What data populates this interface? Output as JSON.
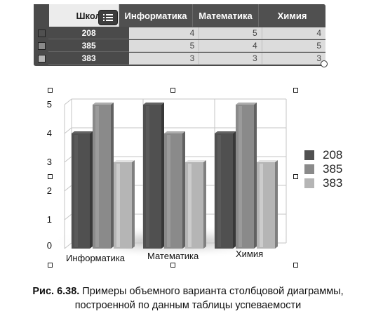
{
  "table": {
    "corner_header": "Школа",
    "columns": [
      "Информатика",
      "Математика",
      "Химия"
    ],
    "rows": [
      {
        "name": "208",
        "values": [
          "4",
          "5",
          "4"
        ]
      },
      {
        "name": "385",
        "values": [
          "5",
          "4",
          "5"
        ]
      },
      {
        "name": "383",
        "values": [
          "3",
          "3",
          "3"
        ]
      }
    ],
    "menu_icon": "list-menu-icon"
  },
  "chart_data": {
    "type": "bar",
    "style": "3d",
    "categories": [
      "Информатика",
      "Математика",
      "Химия"
    ],
    "series": [
      {
        "name": "208",
        "values": [
          4,
          5,
          4
        ],
        "color": "#505050"
      },
      {
        "name": "385",
        "values": [
          5,
          4,
          5
        ],
        "color": "#8a8a8a"
      },
      {
        "name": "383",
        "values": [
          3,
          3,
          3
        ],
        "color": "#b5b5b5"
      }
    ],
    "y_ticks": [
      "5",
      "4",
      "3",
      "2",
      "1",
      "0"
    ],
    "ylim": [
      0,
      5
    ],
    "grid": true,
    "legend_position": "right"
  },
  "caption": {
    "label": "Рис. 6.38.",
    "line1": "Примеры объемного варианта столбцовой диаграммы,",
    "line2": "построенной по данным таблицы успеваемости"
  }
}
